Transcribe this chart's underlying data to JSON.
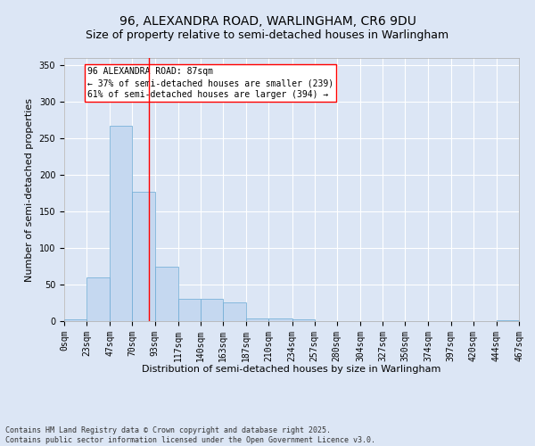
{
  "title": "96, ALEXANDRA ROAD, WARLINGHAM, CR6 9DU",
  "subtitle": "Size of property relative to semi-detached houses in Warlingham",
  "xlabel": "Distribution of semi-detached houses by size in Warlingham",
  "ylabel": "Number of semi-detached properties",
  "annotation_title": "96 ALEXANDRA ROAD: 87sqm",
  "annotation_line1": "← 37% of semi-detached houses are smaller (239)",
  "annotation_line2": "61% of semi-detached houses are larger (394) →",
  "footer1": "Contains HM Land Registry data © Crown copyright and database right 2025.",
  "footer2": "Contains public sector information licensed under the Open Government Licence v3.0.",
  "bar_color": "#c5d8f0",
  "bar_edge_color": "#6aaad4",
  "red_line_x": 87,
  "ylim": [
    0,
    360
  ],
  "yticks": [
    0,
    50,
    100,
    150,
    200,
    250,
    300,
    350
  ],
  "bin_edges": [
    0,
    23,
    47,
    70,
    93,
    117,
    140,
    163,
    187,
    210,
    234,
    257,
    280,
    304,
    327,
    350,
    374,
    397,
    420,
    444,
    467
  ],
  "bar_heights": [
    3,
    60,
    267,
    177,
    75,
    30,
    30,
    26,
    4,
    4,
    2,
    0,
    0,
    0,
    0,
    0,
    0,
    0,
    0,
    1
  ],
  "background_color": "#dce6f5",
  "grid_color": "#ffffff",
  "title_fontsize": 10,
  "subtitle_fontsize": 9,
  "tick_fontsize": 7,
  "ylabel_fontsize": 8,
  "xlabel_fontsize": 8,
  "annotation_fontsize": 7,
  "footer_fontsize": 6
}
